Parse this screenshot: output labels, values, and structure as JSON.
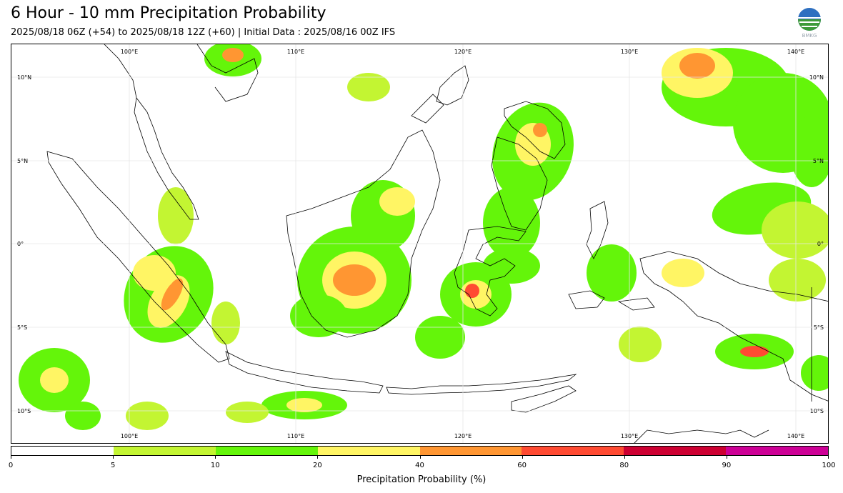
{
  "title": "6 Hour - 10 mm Precipitation Probability",
  "subtitle": "2025/08/18 06Z (+54) to 2025/08/18 12Z (+60) | Initial Data : 2025/08/16 00Z IFS",
  "logo": {
    "icon": "bmkg-logo-icon",
    "text": "BMKG"
  },
  "map": {
    "lon_labels": [
      "100°E",
      "110°E",
      "120°E",
      "130°E",
      "140°E"
    ],
    "lat_labels": [
      "10°N",
      "5°N",
      "0°",
      "5°S",
      "10°S"
    ]
  },
  "colorbar": {
    "colors": [
      "#ffffff",
      "#c3f532",
      "#64f50a",
      "#fff564",
      "#ff9632",
      "#ff4b32",
      "#cd0032",
      "#cd0096"
    ],
    "tick_labels": [
      "0",
      "5",
      "10",
      "20",
      "40",
      "60",
      "80",
      "90",
      "100"
    ],
    "label": "Precipitation Probability (%)"
  }
}
